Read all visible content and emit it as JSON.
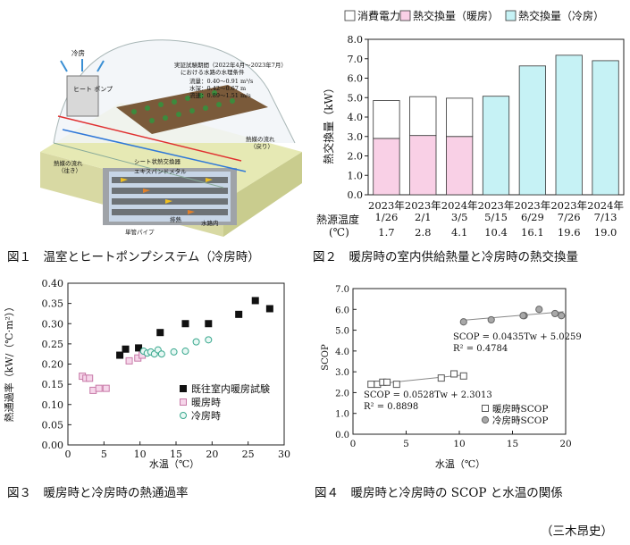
{
  "fig1": {
    "caption": "図１　温室とヒートポンプシステム（冷房時）",
    "labels": {
      "cooling": "冷房",
      "heatpump": "ヒート ポンプ",
      "test_period": "実証試験期間（2022年4月～2023年7月）",
      "water_conditions": "における水路の水理条件",
      "flow_rate": "流量：0.40～0.91 m³/s",
      "water_depth": "水深：0.42～0.67 m",
      "velocity": "流速：0.89～1.51 m/s",
      "heat_flow_return": "熱媒の流れ",
      "return_sub": "（戻り）",
      "heat_flow_out": "熱媒の流れ",
      "out_sub": "（往き）",
      "sheet_exchanger": "シート状熱交換器",
      "expanded_metal": "エキスパンドメタル",
      "exhaust": "排熱",
      "in_channel": "水路内",
      "single_pipe": "単管パイプ"
    }
  },
  "fig2": {
    "caption": "図２　暖房時の室内供給熱量と冷房時の熱交換量",
    "legend": [
      {
        "label": "消費電力",
        "color": "#ffffff"
      },
      {
        "label": "熱交換量（暖房）",
        "color": "#f9d0e6"
      },
      {
        "label": "熱交換量（冷房）",
        "color": "#c6f2f5"
      }
    ],
    "source_temp_label": "熱源温度",
    "source_temp_unit": "(℃)",
    "chart_data": {
      "type": "bar",
      "ylabel": "熱交換量（kW）",
      "ylim": [
        0,
        8
      ],
      "yticks": [
        "0.0",
        "1.0",
        "2.0",
        "3.0",
        "4.0",
        "5.0",
        "6.0",
        "7.0",
        "8.0"
      ],
      "categories": [
        {
          "year": "2023年",
          "date": "1/26"
        },
        {
          "year": "2023年",
          "date": "2/1"
        },
        {
          "year": "2024年",
          "date": "3/5"
        },
        {
          "year": "2023年",
          "date": "5/15"
        },
        {
          "year": "2023年",
          "date": "6/29"
        },
        {
          "year": "2023年",
          "date": "7/26"
        },
        {
          "year": "2024年",
          "date": "7/13"
        }
      ],
      "series": [
        {
          "name": "熱交換量（暖房）",
          "values": [
            2.9,
            3.05,
            3.0,
            0,
            0,
            0,
            0
          ]
        },
        {
          "name": "消費電力",
          "values": [
            1.95,
            2.0,
            1.97,
            0,
            0,
            0,
            0
          ]
        },
        {
          "name": "熱交換量（冷房）",
          "values": [
            0,
            0,
            0,
            5.07,
            6.63,
            7.18,
            6.9
          ]
        }
      ],
      "source_temps": [
        "1.7",
        "2.8",
        "4.1",
        "10.4",
        "16.1",
        "19.6",
        "19.0"
      ]
    }
  },
  "fig3": {
    "caption": "図３　暖房時と冷房時の熱通過率",
    "chart_data": {
      "type": "scatter",
      "xlabel": "水温（℃）",
      "ylabel": "熱通過率（kW/（℃·m²））",
      "xlim": [
        0,
        30
      ],
      "ylim": [
        0,
        0.4
      ],
      "xticks": [
        "0",
        "5",
        "10",
        "15",
        "20",
        "25",
        "30"
      ],
      "yticks": [
        "0.00",
        "0.05",
        "0.10",
        "0.15",
        "0.20",
        "0.25",
        "0.30",
        "0.35",
        "0.40"
      ],
      "series": [
        {
          "name": "既往室内暖房試験",
          "marker": "square-filled",
          "points": [
            [
              7.2,
              0.222
            ],
            [
              8.0,
              0.237
            ],
            [
              9.8,
              0.24
            ],
            [
              12.8,
              0.278
            ],
            [
              16.3,
              0.3
            ],
            [
              19.5,
              0.3
            ],
            [
              23.7,
              0.323
            ],
            [
              26.0,
              0.357
            ],
            [
              28.0,
              0.337
            ]
          ]
        },
        {
          "name": "暖房時",
          "marker": "square-pink",
          "points": [
            [
              2.0,
              0.17
            ],
            [
              2.5,
              0.165
            ],
            [
              3.0,
              0.165
            ],
            [
              3.5,
              0.135
            ],
            [
              4.3,
              0.14
            ],
            [
              5.3,
              0.14
            ],
            [
              8.5,
              0.208
            ],
            [
              9.7,
              0.215
            ],
            [
              10.3,
              0.222
            ]
          ]
        },
        {
          "name": "冷房時",
          "marker": "circle-teal",
          "points": [
            [
              10.5,
              0.232
            ],
            [
              11.0,
              0.227
            ],
            [
              11.5,
              0.23
            ],
            [
              12.0,
              0.225
            ],
            [
              12.5,
              0.235
            ],
            [
              13.0,
              0.225
            ],
            [
              14.7,
              0.23
            ],
            [
              16.3,
              0.232
            ],
            [
              17.8,
              0.255
            ],
            [
              19.5,
              0.26
            ]
          ]
        }
      ]
    }
  },
  "fig4": {
    "caption": "図４　暖房時と冷房時の SCOP と水温の関係",
    "chart_data": {
      "type": "scatter",
      "xlabel": "水温（℃）",
      "ylabel": "SCOP",
      "xlim": [
        0,
        20
      ],
      "ylim": [
        0,
        7
      ],
      "xticks": [
        "0",
        "5",
        "10",
        "15",
        "20"
      ],
      "yticks": [
        "0.0",
        "1.0",
        "2.0",
        "3.0",
        "4.0",
        "5.0",
        "6.0",
        "7.0"
      ],
      "series": [
        {
          "name": "暖房時SCOP",
          "marker": "square-open",
          "points": [
            [
              1.7,
              2.4
            ],
            [
              2.3,
              2.4
            ],
            [
              2.8,
              2.5
            ],
            [
              3.2,
              2.5
            ],
            [
              4.1,
              2.4
            ],
            [
              8.3,
              2.7
            ],
            [
              9.5,
              2.9
            ],
            [
              10.4,
              2.8
            ]
          ]
        },
        {
          "name": "冷房時SCOP",
          "marker": "circle-gray",
          "points": [
            [
              10.4,
              5.4
            ],
            [
              13.0,
              5.5
            ],
            [
              16.1,
              5.7
            ],
            [
              16.0,
              5.7
            ],
            [
              17.5,
              6.0
            ],
            [
              19.0,
              5.8
            ],
            [
              19.6,
              5.7
            ]
          ]
        }
      ],
      "annotations": {
        "cool_eq": "SCOP = 0.0435Tw + 5.0259",
        "cool_r2": "R² = 0.4784",
        "heat_eq": "SCOP = 0.0528Tw + 2.3013",
        "heat_r2": "R² = 0.8898"
      },
      "fits": [
        {
          "slope": 0.0435,
          "intercept": 5.0259,
          "x": [
            10.4,
            19.8
          ]
        },
        {
          "slope": 0.0528,
          "intercept": 2.3013,
          "x": [
            1.7,
            10.4
          ]
        }
      ]
    }
  },
  "author": "（三木昂史）"
}
